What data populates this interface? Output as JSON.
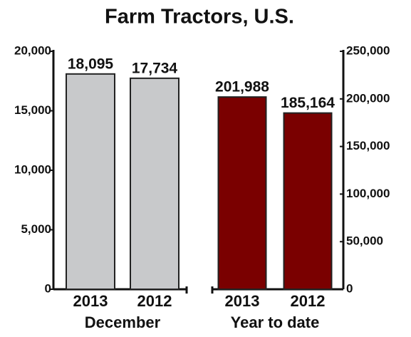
{
  "title": "Farm Tractors, U.S.",
  "chart_data": [
    {
      "type": "bar",
      "x_label": "December",
      "categories": [
        "2013",
        "2012"
      ],
      "values": [
        18095,
        17734
      ],
      "value_labels": [
        "18,095",
        "17,734"
      ],
      "color": "#c8c9cb",
      "ylim": [
        0,
        20000
      ],
      "yticks": [
        0,
        {
          "value": 5000,
          "label": "5,000"
        },
        {
          "value": 10000,
          "label": "10,000"
        },
        {
          "value": 15000,
          "label": "15,000"
        },
        {
          "value": 20000,
          "label": "20,000"
        }
      ],
      "axis_side": "left"
    },
    {
      "type": "bar",
      "x_label": "Year to date",
      "categories": [
        "2013",
        "2012"
      ],
      "values": [
        201988,
        185164
      ],
      "value_labels": [
        "201,988",
        "185,164"
      ],
      "color": "#7a0000",
      "ylim": [
        0,
        250000
      ],
      "yticks": [
        0,
        {
          "value": 50000,
          "label": "50,000"
        },
        {
          "value": 100000,
          "label": "100,000"
        },
        {
          "value": 150000,
          "label": "150,000"
        },
        {
          "value": 200000,
          "label": "200,000"
        },
        {
          "value": 250000,
          "label": "250,000"
        }
      ],
      "axis_side": "right"
    }
  ]
}
